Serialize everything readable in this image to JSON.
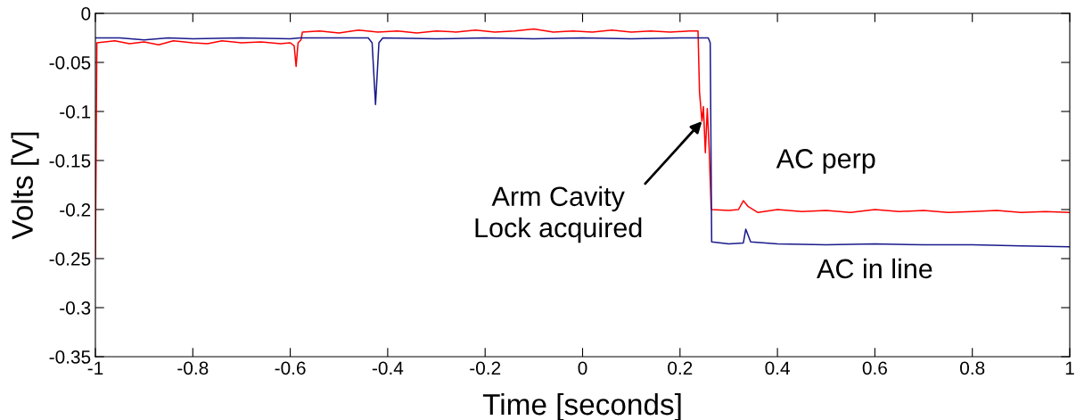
{
  "chart_data": {
    "type": "line",
    "xlabel": "Time [seconds]",
    "ylabel": "Volts [V]",
    "xlim": [
      -1,
      1
    ],
    "ylim": [
      -0.35,
      0
    ],
    "xticks": [
      -1,
      -0.8,
      -0.6,
      -0.4,
      -0.2,
      0,
      0.2,
      0.4,
      0.6,
      0.8,
      1
    ],
    "yticks": [
      0,
      -0.05,
      -0.1,
      -0.15,
      -0.2,
      -0.25,
      -0.3,
      -0.35
    ],
    "grid": false,
    "legend": false,
    "marker": "none",
    "line_style": "solid",
    "annotations": [
      {
        "text": "Arm Cavity\nLock acquired",
        "x": 0.245,
        "y": -0.11
      }
    ],
    "series": [
      {
        "name": "AC perp",
        "color": "#ff0000",
        "x": [
          -1,
          -0.997,
          -0.96,
          -0.93,
          -0.9,
          -0.87,
          -0.84,
          -0.8,
          -0.77,
          -0.74,
          -0.7,
          -0.66,
          -0.62,
          -0.6,
          -0.592,
          -0.588,
          -0.584,
          -0.578,
          -0.575,
          -0.54,
          -0.5,
          -0.46,
          -0.42,
          -0.38,
          -0.34,
          -0.3,
          -0.26,
          -0.22,
          -0.18,
          -0.14,
          -0.1,
          -0.06,
          -0.02,
          0.02,
          0.06,
          0.1,
          0.14,
          0.18,
          0.22,
          0.237,
          0.24,
          0.245,
          0.248,
          0.252,
          0.256,
          0.26,
          0.264,
          0.3,
          0.32,
          0.33,
          0.34,
          0.36,
          0.4,
          0.45,
          0.5,
          0.55,
          0.6,
          0.65,
          0.7,
          0.75,
          0.8,
          0.85,
          0.9,
          0.95,
          1
        ],
        "values": [
          -0.25,
          -0.03,
          -0.028,
          -0.031,
          -0.029,
          -0.032,
          -0.028,
          -0.03,
          -0.031,
          -0.028,
          -0.03,
          -0.029,
          -0.031,
          -0.03,
          -0.033,
          -0.054,
          -0.03,
          -0.027,
          -0.019,
          -0.018,
          -0.02,
          -0.017,
          -0.019,
          -0.018,
          -0.02,
          -0.018,
          -0.019,
          -0.017,
          -0.019,
          -0.018,
          -0.016,
          -0.019,
          -0.018,
          -0.019,
          -0.017,
          -0.019,
          -0.018,
          -0.019,
          -0.018,
          -0.018,
          -0.08,
          -0.11,
          -0.095,
          -0.142,
          -0.097,
          -0.14,
          -0.2,
          -0.201,
          -0.2,
          -0.191,
          -0.197,
          -0.203,
          -0.2,
          -0.202,
          -0.201,
          -0.203,
          -0.2,
          -0.202,
          -0.201,
          -0.203,
          -0.202,
          -0.201,
          -0.203,
          -0.202,
          -0.203
        ]
      },
      {
        "name": "AC in line",
        "color": "#1a1a8c",
        "x": [
          -1,
          -0.95,
          -0.9,
          -0.85,
          -0.8,
          -0.7,
          -0.6,
          -0.58,
          -0.5,
          -0.44,
          -0.432,
          -0.425,
          -0.418,
          -0.41,
          -0.3,
          -0.2,
          -0.1,
          0,
          0.1,
          0.2,
          0.258,
          0.262,
          0.265,
          0.3,
          0.33,
          0.335,
          0.345,
          0.4,
          0.5,
          0.6,
          0.7,
          0.8,
          0.9,
          1
        ],
        "values": [
          -0.025,
          -0.025,
          -0.027,
          -0.025,
          -0.026,
          -0.025,
          -0.026,
          -0.025,
          -0.025,
          -0.025,
          -0.03,
          -0.093,
          -0.03,
          -0.025,
          -0.026,
          -0.025,
          -0.026,
          -0.025,
          -0.026,
          -0.025,
          -0.025,
          -0.03,
          -0.233,
          -0.235,
          -0.234,
          -0.22,
          -0.233,
          -0.235,
          -0.236,
          -0.235,
          -0.236,
          -0.236,
          -0.237,
          -0.238
        ]
      }
    ]
  }
}
